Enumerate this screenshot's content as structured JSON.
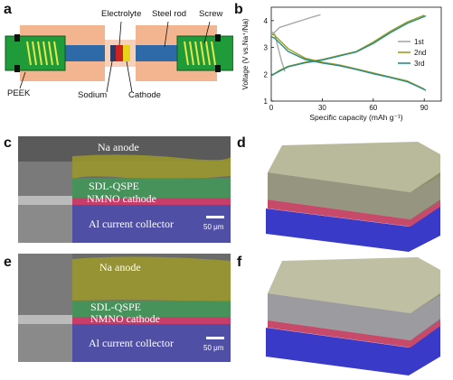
{
  "panels": {
    "a": "a",
    "b": "b",
    "c": "c",
    "d": "d",
    "e": "e",
    "f": "f"
  },
  "schematic": {
    "electrolyte": "Electrolyte",
    "steel_rod": "Steel rod",
    "screw": "Screw",
    "peek": "PEEK",
    "sodium": "Sodium",
    "cathode": "Cathode"
  },
  "chart_data": {
    "type": "line",
    "xlabel": "Specific capacity (mAh g⁻¹)",
    "ylabel": "Voltage (V vs.Na⁺/Na)",
    "xlim": [
      0,
      100
    ],
    "ylim": [
      1,
      4.5
    ],
    "xticks": [
      "0",
      "30",
      "60",
      "90"
    ],
    "yticks": [
      "1",
      "2",
      "3",
      "4"
    ],
    "legend_position": "right",
    "series": [
      {
        "name": "1st",
        "color": "#a9a9a9",
        "charge": {
          "x": [
            0,
            5,
            10,
            15,
            20,
            25,
            29
          ],
          "y": [
            3.45,
            3.75,
            3.85,
            3.95,
            4.05,
            4.15,
            4.22
          ]
        },
        "discharge": {
          "x": [
            0,
            2,
            4,
            6,
            8
          ],
          "y": [
            3.6,
            3.5,
            3.0,
            2.5,
            2.1
          ]
        }
      },
      {
        "name": "2nd",
        "color": "#9aa01a",
        "charge": {
          "x": [
            0,
            5,
            10,
            20,
            30,
            40,
            50,
            60,
            70,
            80,
            88,
            90
          ],
          "y": [
            1.95,
            2.15,
            2.3,
            2.45,
            2.55,
            2.7,
            2.85,
            3.2,
            3.6,
            3.95,
            4.15,
            4.2
          ]
        },
        "discharge": {
          "x": [
            0,
            2,
            6,
            10,
            20,
            30,
            40,
            50,
            60,
            70,
            80,
            85,
            90
          ],
          "y": [
            3.5,
            3.45,
            3.2,
            2.95,
            2.6,
            2.45,
            2.35,
            2.2,
            2.05,
            1.9,
            1.75,
            1.6,
            1.45
          ]
        }
      },
      {
        "name": "3rd",
        "color": "#2a8a8a",
        "charge": {
          "x": [
            0,
            5,
            10,
            20,
            30,
            40,
            50,
            60,
            70,
            80,
            88,
            91
          ],
          "y": [
            1.95,
            2.12,
            2.28,
            2.43,
            2.53,
            2.68,
            2.83,
            3.15,
            3.55,
            3.9,
            4.1,
            4.18
          ]
        },
        "discharge": {
          "x": [
            0,
            2,
            6,
            10,
            20,
            30,
            40,
            50,
            60,
            70,
            80,
            85,
            91
          ],
          "y": [
            3.4,
            3.35,
            3.1,
            2.85,
            2.55,
            2.42,
            2.32,
            2.18,
            2.02,
            1.88,
            1.72,
            1.58,
            1.4
          ]
        }
      }
    ]
  },
  "sem_c": {
    "na_anode": "Na anode",
    "sdl_qspe": "SDL-QSPE",
    "nmno_cathode": "NMNO cathode",
    "al_collector": "Al current collector",
    "scale": "50 μm"
  },
  "sem_e": {
    "na_anode": "Na anode",
    "sdl_qspe": "SDL-QSPE",
    "nmno_cathode": "NMNO cathode",
    "al_collector": "Al current collector",
    "scale": "50 μm"
  },
  "colors": {
    "peek": "#f2b58f",
    "steel": "#2f6aa8",
    "green_end": "#1f9b3a",
    "sodium_layer": "#cc2222",
    "cathode_layer": "#e8d21a",
    "na_overlay": "#b9b43a",
    "sdl_overlay": "#3f9b56",
    "nmno_overlay": "#d23a6a",
    "al_overlay": "#4a4ab0"
  }
}
